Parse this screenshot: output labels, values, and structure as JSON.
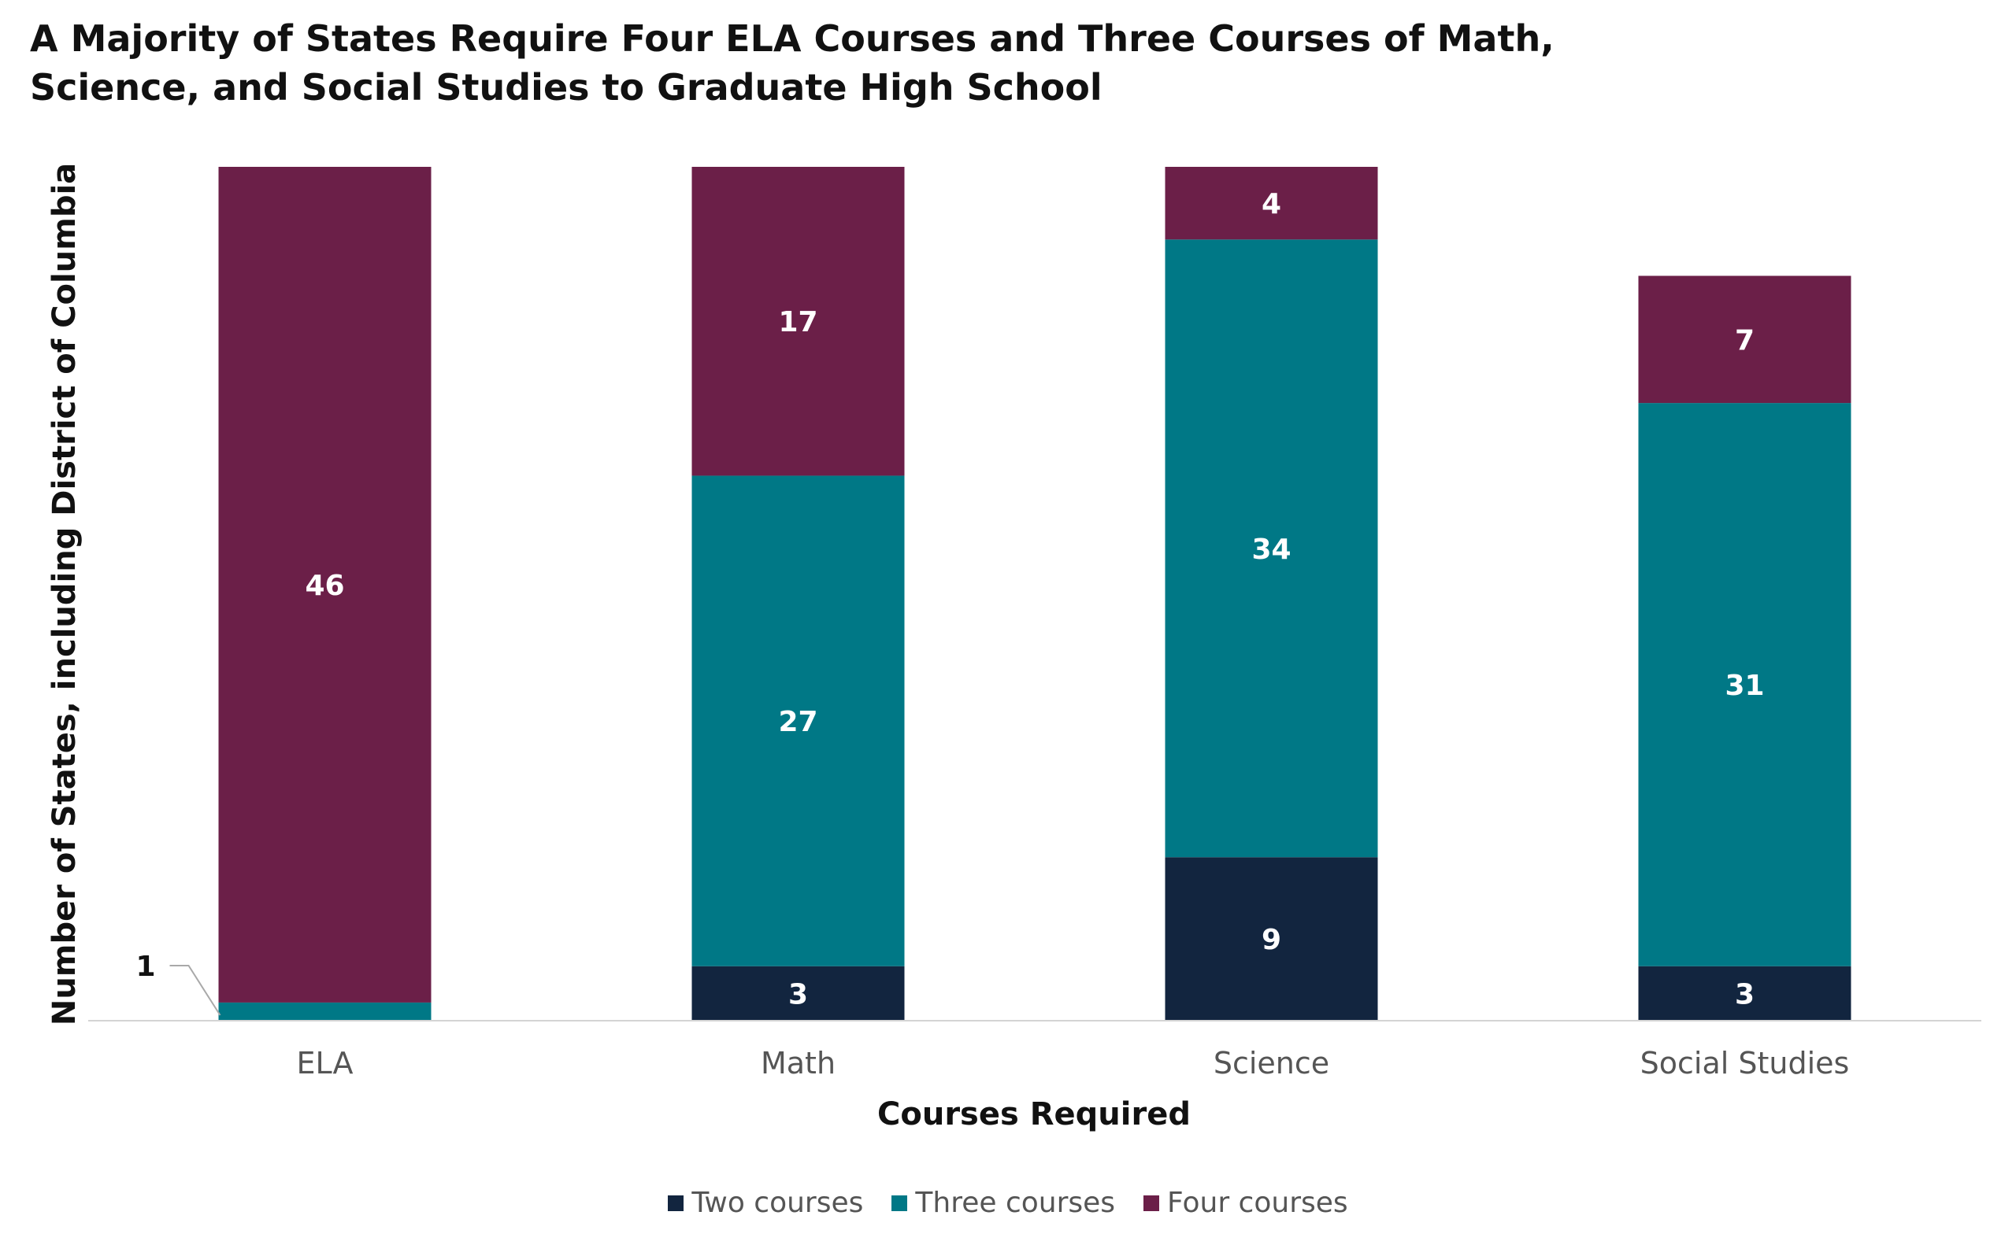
{
  "chart_data": {
    "type": "bar",
    "stacked": true,
    "title_lines": [
      "A Majority of States Require Four ELA Courses and Three Courses of Math,",
      "Science, and Social Studies to Graduate High School"
    ],
    "xlabel": "Courses Required",
    "ylabel": "Number of States, including District of Columbia",
    "categories": [
      "ELA",
      "Math",
      "Science",
      "Social Studies"
    ],
    "series": [
      {
        "name": "Two courses",
        "color": "#12253f",
        "values": [
          0,
          3,
          9,
          3
        ],
        "labels": [
          "",
          "3",
          "9",
          "3"
        ]
      },
      {
        "name": "Three courses",
        "color": "#007886",
        "values": [
          1,
          27,
          34,
          31
        ],
        "labels": [
          "",
          "27",
          "34",
          "31"
        ]
      },
      {
        "name": "Four courses",
        "color": "#6b1f48",
        "values": [
          46,
          17,
          4,
          7
        ],
        "labels": [
          "46",
          "17",
          "4",
          "7"
        ]
      }
    ],
    "callouts": [
      {
        "category": "ELA",
        "series": "Three courses",
        "text": "1"
      }
    ],
    "ylim": [
      0,
      47
    ],
    "y_axis_visible": false,
    "grid": false,
    "legend_position": "bottom"
  }
}
